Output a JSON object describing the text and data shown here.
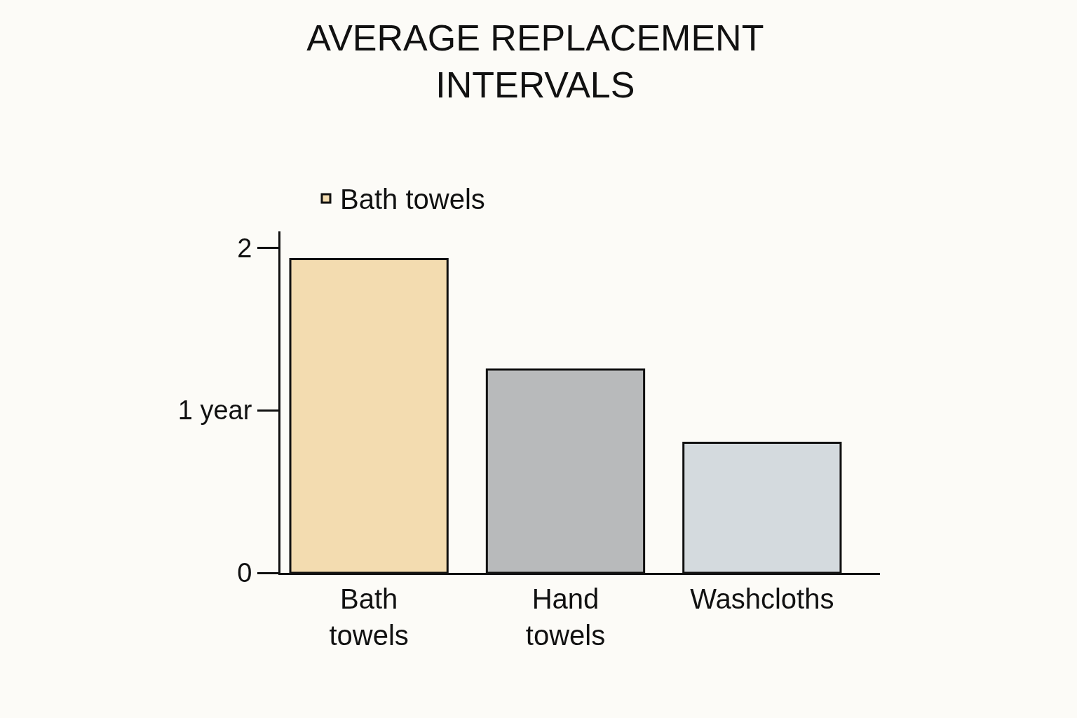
{
  "chart_data": {
    "type": "bar",
    "title": "AVERAGE REPLACEMENT\nINTERVALS",
    "categories": [
      "Bath towels",
      "Hand towels",
      "Washcloths"
    ],
    "series": [
      {
        "name": "Bath towels",
        "colors": [
          "#f3dcb0",
          "#b8babb",
          "#d4dade"
        ],
        "values": [
          1.93,
          1.25,
          0.8
        ]
      }
    ],
    "ylim": [
      0,
      2.1
    ],
    "yticks": [
      0,
      {
        "value": 1,
        "label": "1 year"
      },
      2
    ],
    "grid": false,
    "legend": "top"
  }
}
